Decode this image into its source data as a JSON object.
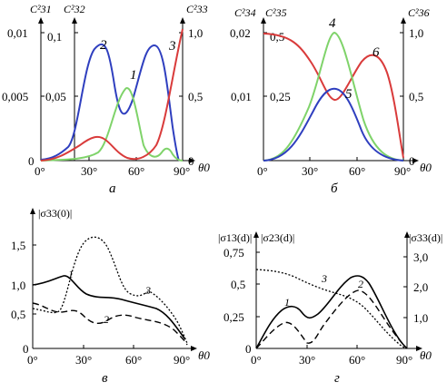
{
  "figure": {
    "panels": [
      {
        "label": "а",
        "left_axis_labels": [
          "C²31",
          "C²32"
        ],
        "right_axis_label": "C²33",
        "left_ticks_outer": [
          "0,01",
          "0,005",
          "0"
        ],
        "left_ticks_inner": [
          "0,1",
          "0,05"
        ],
        "right_ticks": [
          "1,0",
          "0,5",
          "0"
        ],
        "x_ticks": [
          "0°",
          "30°",
          "60°",
          "90°"
        ],
        "x_label": "θ0",
        "curve_numbers": [
          "1",
          "2",
          "3"
        ]
      },
      {
        "label": "б",
        "left_axis_labels": [
          "C²34",
          "C²35"
        ],
        "right_axis_label": "C²36",
        "left_ticks_outer": [
          "0,02",
          "0,01"
        ],
        "left_ticks_inner": [
          "0,5",
          "0,25"
        ],
        "right_ticks": [
          "1,0",
          "0,5",
          "0"
        ],
        "x_ticks": [
          "0°",
          "30°",
          "60°",
          "90°"
        ],
        "x_label": "θ0",
        "curve_numbers": [
          "4",
          "5",
          "6"
        ]
      },
      {
        "label": "в",
        "left_axis_label": "|σ33(0)|",
        "y_ticks": [
          "1,5",
          "1,0",
          "0,5",
          "0"
        ],
        "x_ticks": [
          "0°",
          "30°",
          "60°",
          "90°"
        ],
        "x_label": "θ0",
        "curve_numbers": [
          "1",
          "2",
          "3"
        ]
      },
      {
        "label": "г",
        "left_axis_labels": [
          "|σ13(d)|",
          "|σ23(d)|"
        ],
        "right_axis_label": "|σ33(d)|",
        "y_ticks": [
          "0,75",
          "0,5",
          "0,25",
          "0"
        ],
        "right_ticks": [
          "3,0",
          "2,0",
          "1,0"
        ],
        "x_ticks": [
          "0°",
          "30°",
          "60°",
          "90°"
        ],
        "x_label": "θ0",
        "curve_numbers": [
          "1",
          "2",
          "3"
        ]
      }
    ],
    "colors": {
      "blue": "#2f3fbf",
      "green": "#7fd36a",
      "red": "#d93b3b",
      "black": "#000000"
    }
  }
}
